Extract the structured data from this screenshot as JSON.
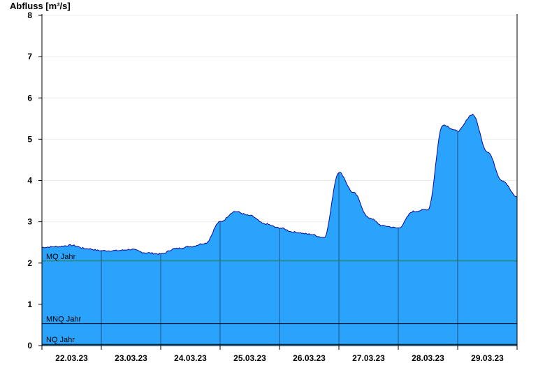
{
  "chart_data": {
    "type": "area",
    "ylabel": "Abfluss [m³/s]",
    "xlabel": "",
    "ylim": [
      0,
      8
    ],
    "yticks": [
      0,
      1,
      2,
      3,
      4,
      5,
      6,
      7,
      8
    ],
    "xlim": [
      "21.03.23 24:00",
      "29.03.23 24:00"
    ],
    "grid": "horizontal",
    "x_tick_labels": [
      "22.03.23",
      "23.03.23",
      "24.03.23",
      "25.03.23",
      "26.03.23",
      "27.03.23",
      "28.03.23",
      "29.03.23"
    ],
    "series": [
      {
        "fill_color": "#29a3fb",
        "line_color": "#0a0a9a",
        "x_hours": [
          0,
          6,
          12,
          18,
          24,
          30,
          36,
          42,
          48,
          54,
          60,
          66,
          72,
          78,
          84,
          90,
          96,
          102,
          108,
          114,
          120,
          126,
          132,
          138,
          144,
          150,
          156,
          162,
          168,
          174,
          180,
          186,
          192
        ],
        "values": [
          2.38,
          2.4,
          2.43,
          2.35,
          2.3,
          2.3,
          2.33,
          2.25,
          2.22,
          2.35,
          2.4,
          2.48,
          3.0,
          3.25,
          3.15,
          2.95,
          2.85,
          2.75,
          2.7,
          2.62,
          4.2,
          3.7,
          3.1,
          2.9,
          2.85,
          3.25,
          3.3,
          5.35,
          5.2,
          5.6,
          4.7,
          4.0,
          3.6
        ],
        "x_note": "hours since 22.03.23 00:00"
      }
    ],
    "reference_lines": [
      {
        "label": "MQ Jahr",
        "value": 2.05,
        "color": "#2e7d32"
      },
      {
        "label": "MNQ Jahr",
        "value": 0.53,
        "color": "#000000"
      },
      {
        "label": "NQ Jahr",
        "value": 0.03,
        "color": "#000000"
      }
    ]
  }
}
